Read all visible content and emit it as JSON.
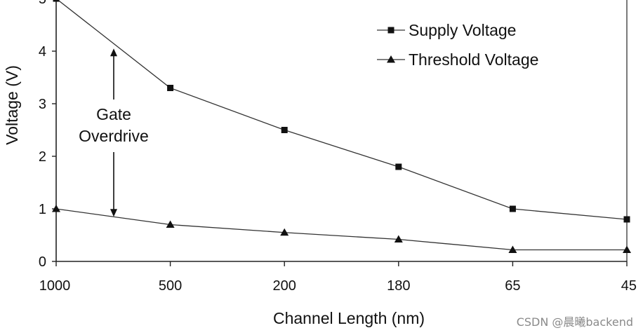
{
  "chart_data": {
    "type": "line",
    "title": "",
    "xlabel": "Channel Length (nm)",
    "ylabel": "Voltage (V)",
    "categories": [
      "1000",
      "500",
      "200",
      "180",
      "65",
      "45"
    ],
    "ylim": [
      0,
      5
    ],
    "yticks": [
      "0",
      "1",
      "2",
      "3",
      "4",
      "5"
    ],
    "grid": false,
    "legend_position": "top-right",
    "series": [
      {
        "name": "Supply Voltage",
        "marker": "square",
        "values": [
          5.0,
          3.3,
          2.5,
          1.8,
          1.0,
          0.8
        ]
      },
      {
        "name": "Threshold Voltage",
        "marker": "triangle",
        "values": [
          1.0,
          0.7,
          0.55,
          0.42,
          0.22,
          0.22
        ]
      }
    ],
    "annotation": {
      "lines": [
        "Gate",
        "Overdrive"
      ],
      "arrow_from": 4.05,
      "arrow_to": 0.85
    }
  },
  "watermark": "CSDN @晨曦backend"
}
